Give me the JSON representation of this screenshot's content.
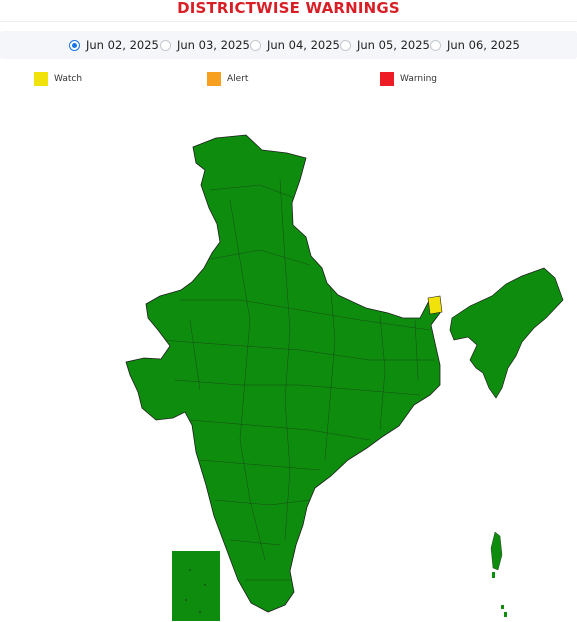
{
  "title": "DISTRICTWISE WARNINGS",
  "dates": [
    {
      "label": "Jun 02, 2025",
      "selected": true
    },
    {
      "label": "Jun 03, 2025",
      "selected": false
    },
    {
      "label": "Jun 04, 2025",
      "selected": false
    },
    {
      "label": "Jun 05, 2025",
      "selected": false
    },
    {
      "label": "Jun 06, 2025",
      "selected": false
    }
  ],
  "legend": [
    {
      "label": "Watch",
      "color": "#f2e20c"
    },
    {
      "label": "Alert",
      "color": "#f7a01f"
    },
    {
      "label": "Warning",
      "color": "#ee1c25"
    }
  ],
  "map_colors": {
    "no_warning": "#0e8c0e",
    "watch": "#f2e20c",
    "alert": "#f7a01f",
    "warning": "#ee1c25",
    "unavailable": "#e8e8e8",
    "border": "#1e1e1e"
  }
}
